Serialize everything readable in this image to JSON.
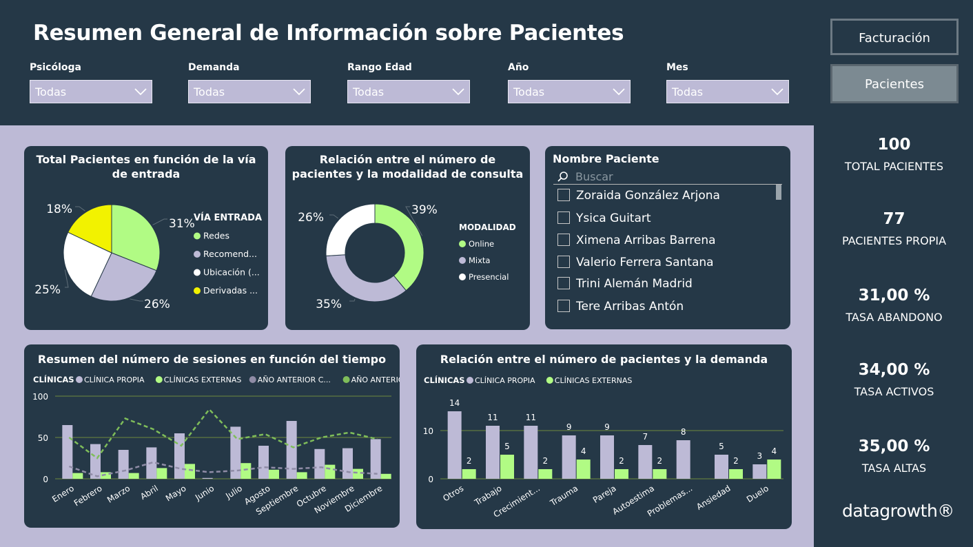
{
  "header": {
    "title": "Resumen General de Información sobre Pacientes"
  },
  "filters": [
    {
      "label": "Psicóloga",
      "value": "Todas"
    },
    {
      "label": "Demanda",
      "value": "Todas"
    },
    {
      "label": "Rango Edad",
      "value": "Todas"
    },
    {
      "label": "Año",
      "value": "Todas"
    },
    {
      "label": "Mes",
      "value": "Todas"
    }
  ],
  "nav": {
    "billing": "Facturación",
    "patients": "Pacientes"
  },
  "kpis": [
    {
      "value": "100",
      "label": "TOTAL PACIENTES"
    },
    {
      "value": "77",
      "label": "PACIENTES PROPIA"
    },
    {
      "value": "31,00 %",
      "label": "TASA ABANDONO"
    },
    {
      "value": "34,00 %",
      "label": "TASA ACTIVOS"
    },
    {
      "value": "35,00 %",
      "label": "TASA ALTAS"
    }
  ],
  "logo": "datagrowth®",
  "colors": {
    "bg": "#253847",
    "canvas": "#bdbad6",
    "green": "#b1fb84",
    "lavender": "#bdbad6",
    "yellow": "#f2f200",
    "white": "#ffffff",
    "darkgreen": "#72b055"
  },
  "slicer": {
    "title": "Nombre Paciente",
    "placeholder": "Buscar",
    "items": [
      "Zoraida González Arjona",
      "Ysica Guitart",
      "Ximena Arribas Barrena",
      "Valerio Ferrera Santana",
      "Trini Alemán Madrid",
      "Tere Arribas Antón"
    ]
  },
  "chart_data": [
    {
      "type": "pie",
      "title": "Total Pacientes en función de la vía de entrada",
      "legend_title": "VÍA ENTRADA",
      "legend_placement": "right",
      "slices": [
        {
          "name": "Redes",
          "value": 31,
          "label": "31%",
          "color": "#b1fb84"
        },
        {
          "name": "Recomend...",
          "value": 26,
          "label": "26%",
          "color": "#bdbad6"
        },
        {
          "name": "Ubicación (...",
          "value": 25,
          "label": "25%",
          "color": "#ffffff"
        },
        {
          "name": "Derivadas ...",
          "value": 18,
          "label": "18%",
          "color": "#f2f200"
        }
      ]
    },
    {
      "type": "pie",
      "donut": true,
      "title": "Relación entre el número de pacientes y la modalidad de consulta",
      "legend_title": "MODALIDAD",
      "legend_placement": "right",
      "slices": [
        {
          "name": "Online",
          "value": 39,
          "label": "39%",
          "color": "#b1fb84"
        },
        {
          "name": "Mixta",
          "value": 35,
          "label": "35%",
          "color": "#bdbad6"
        },
        {
          "name": "Presencial",
          "value": 26,
          "label": "26%",
          "color": "#ffffff"
        }
      ]
    },
    {
      "type": "bar",
      "title": "Resumen del número de sesiones en función del tiempo",
      "legend_title": "CLÍNICAS",
      "legend_placement": "top-left",
      "legend": [
        "CLÍNICA PROPIA",
        "CLÍNICAS EXTERNAS",
        "AÑO ANTERIOR C...",
        "AÑO ANTERIO..."
      ],
      "categories": [
        "Enero",
        "Febrero",
        "Marzo",
        "Abril",
        "Mayo",
        "Junio",
        "Julio",
        "Agosto",
        "Septiembre",
        "Octubre",
        "Noviembre",
        "Diciembre"
      ],
      "yticks": [
        "0",
        "50",
        "100"
      ],
      "ylim": [
        0,
        100
      ],
      "series": [
        {
          "name": "CLÍNICA PROPIA",
          "type": "bar",
          "color": "#bdbad6",
          "values": [
            65,
            42,
            35,
            38,
            55,
            1,
            63,
            40,
            70,
            36,
            37,
            48
          ]
        },
        {
          "name": "CLÍNICAS EXTERNAS",
          "type": "bar",
          "color": "#b1fb84",
          "values": [
            7,
            8,
            7,
            13,
            18,
            0,
            19,
            11,
            8,
            17,
            12,
            6
          ]
        },
        {
          "name": "AÑO ANTERIOR C...",
          "type": "line",
          "color": "#8f8ca6",
          "values": [
            15,
            3,
            10,
            20,
            12,
            8,
            10,
            14,
            12,
            14,
            8,
            6
          ]
        },
        {
          "name": "AÑO ANTERIO...",
          "type": "line",
          "color": "#7fbd5a",
          "values": [
            50,
            25,
            73,
            60,
            40,
            84,
            48,
            54,
            38,
            50,
            56,
            48
          ]
        }
      ]
    },
    {
      "type": "bar",
      "title": "Relación entre el número de pacientes y la demanda",
      "legend_title": "CLÍNICAS",
      "legend_placement": "top-left",
      "legend": [
        "CLÍNICA PROPIA",
        "CLÍNICAS EXTERNAS"
      ],
      "categories": [
        "Otros",
        "Trabajo",
        "Crecimient...",
        "Trauma",
        "Pareja",
        "Autoestima",
        "Problemas...",
        "Ansiedad",
        "Duelo"
      ],
      "yticks": [
        "0",
        "10"
      ],
      "ylim": [
        0,
        16
      ],
      "series": [
        {
          "name": "CLÍNICA PROPIA",
          "color": "#bdbad6",
          "values": [
            14,
            11,
            11,
            9,
            9,
            7,
            8,
            5,
            3
          ]
        },
        {
          "name": "CLÍNICAS EXTERNAS",
          "color": "#b1fb84",
          "values": [
            2,
            5,
            2,
            4,
            2,
            2,
            null,
            2,
            4
          ]
        }
      ]
    }
  ]
}
